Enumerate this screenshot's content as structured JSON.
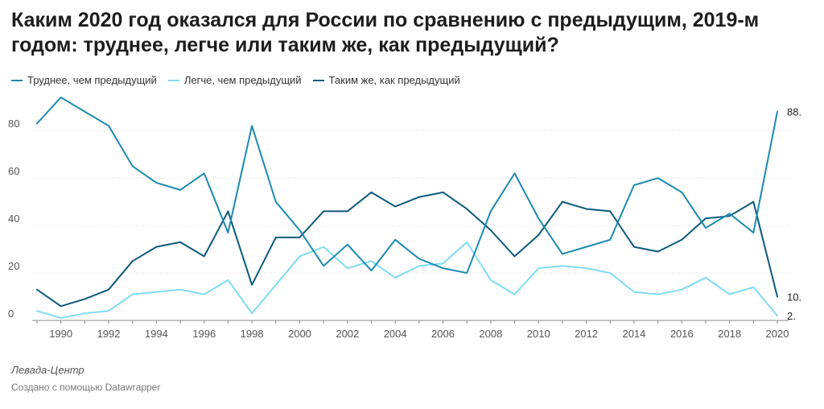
{
  "title": "Каким 2020 год оказался для России по сравнению с предыдущим, 2019-м годом: труднее, легче или таким же, как предыдущий?",
  "source": "Левада-Центр",
  "credit": "Создано с помощью Datawrapper",
  "colors": {
    "harder": "#1a8aaf",
    "easier": "#7fdcf5",
    "same": "#0c5a7d",
    "grid": "#dddddd",
    "tick": "#555555"
  },
  "chart_data": {
    "type": "line",
    "x": [
      1989,
      1990,
      1991,
      1992,
      1993,
      1994,
      1995,
      1996,
      1997,
      1998,
      1999,
      2000,
      2001,
      2002,
      2003,
      2004,
      2005,
      2006,
      2007,
      2008,
      2009,
      2010,
      2011,
      2012,
      2013,
      2014,
      2015,
      2016,
      2017,
      2018,
      2019,
      2020
    ],
    "xticks": [
      1990,
      1992,
      1994,
      1996,
      1998,
      2000,
      2002,
      2004,
      2006,
      2008,
      2010,
      2012,
      2014,
      2016,
      2018,
      2020
    ],
    "yticks": [
      0,
      20,
      40,
      60,
      80
    ],
    "ylim": [
      0,
      95
    ],
    "xlim": [
      1989,
      2020
    ],
    "grid": true,
    "legend_position": "top-left",
    "series": [
      {
        "name": "Труднее, чем предыдущий",
        "color": "#1a8aaf",
        "end_label": "88.",
        "values": [
          83,
          94,
          88,
          82,
          65,
          58,
          55,
          62,
          37,
          82,
          50,
          38,
          23,
          32,
          21,
          34,
          26,
          22,
          20,
          46,
          62,
          43,
          28,
          31,
          34,
          57,
          60,
          54,
          39,
          45,
          37,
          88
        ]
      },
      {
        "name": "Легче, чем предыдущий",
        "color": "#7fdcf5",
        "end_label": "2.",
        "values": [
          4,
          1,
          3,
          4,
          11,
          12,
          13,
          11,
          17,
          3,
          15,
          27,
          31,
          22,
          25,
          18,
          23,
          24,
          33,
          17,
          11,
          22,
          23,
          22,
          20,
          12,
          11,
          13,
          18,
          11,
          14,
          2
        ]
      },
      {
        "name": "Таким  же, как предыдущий",
        "color": "#0c5a7d",
        "end_label": "10.",
        "values": [
          13,
          6,
          9,
          13,
          25,
          31,
          33,
          27,
          46,
          15,
          35,
          35,
          46,
          46,
          54,
          48,
          52,
          54,
          47,
          38,
          27,
          36,
          50,
          47,
          46,
          31,
          29,
          34,
          43,
          44,
          50,
          10
        ]
      }
    ]
  }
}
